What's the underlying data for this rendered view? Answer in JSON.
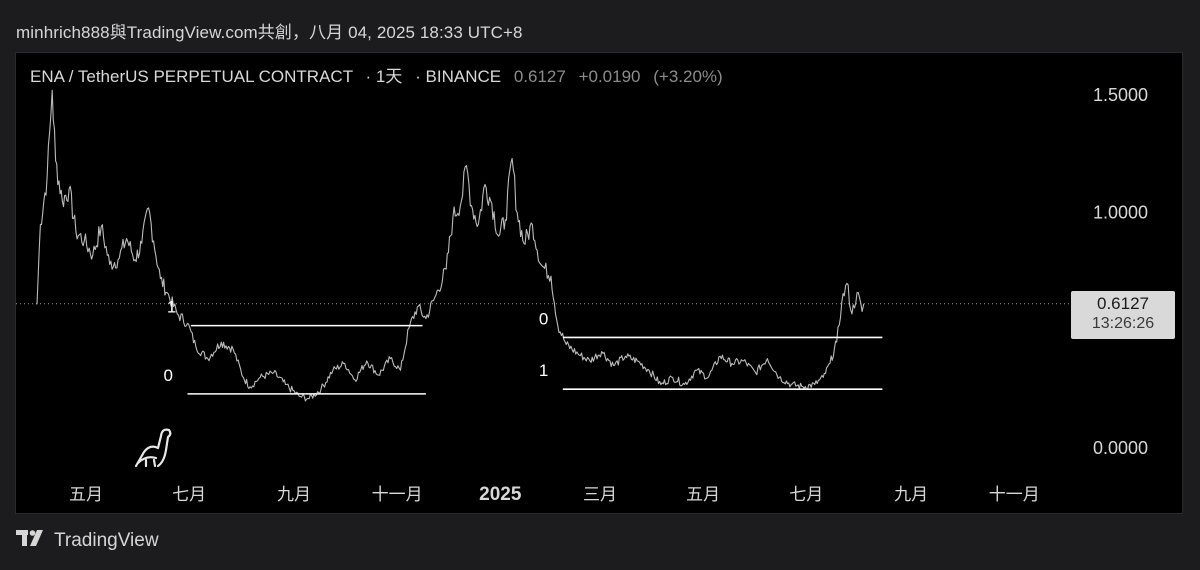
{
  "caption": "minhrich888與TradingView.com共創，八月 04, 2025 18:33 UTC+8",
  "header": {
    "symbol": "ENA / TetherUS PERPETUAL CONTRACT",
    "interval": "1天",
    "exchange": "BINANCE",
    "sep": "·",
    "last": "0.6127",
    "change": "+0.0190",
    "change_pct": "(+3.20%)"
  },
  "price_tag": {
    "price": "0.6127",
    "countdown": "13:26:26"
  },
  "brand": {
    "name": "TradingView",
    "icon": "tradingview-logo-icon"
  },
  "mascot_icon": "dinosaur-icon",
  "colors": {
    "background": "#000000",
    "line": "#cfcfcf",
    "text": "#d8d8d8",
    "muted": "#8c8c8c",
    "levels": "#ffffff"
  },
  "chart_data": {
    "type": "line",
    "title": "",
    "xlabel": "",
    "ylabel": "",
    "ylim": [
      0.0,
      1.5
    ],
    "y_ticks": [
      {
        "value": 1.5,
        "label": "1.5000"
      },
      {
        "value": 1.0,
        "label": "1.0000"
      },
      {
        "value": 0.0,
        "label": "0.0000"
      }
    ],
    "x_ticks": [
      {
        "date": "2024-05-01",
        "label": "五月",
        "bold": false
      },
      {
        "date": "2024-07-01",
        "label": "七月",
        "bold": false
      },
      {
        "date": "2024-09-01",
        "label": "九月",
        "bold": false
      },
      {
        "date": "2024-11-01",
        "label": "十一月",
        "bold": false
      },
      {
        "date": "2025-01-01",
        "label": "2025",
        "bold": true
      },
      {
        "date": "2025-03-01",
        "label": "三月",
        "bold": false
      },
      {
        "date": "2025-05-01",
        "label": "五月",
        "bold": false
      },
      {
        "date": "2025-07-01",
        "label": "七月",
        "bold": false
      },
      {
        "date": "2025-09-01",
        "label": "九月",
        "bold": false
      },
      {
        "date": "2025-11-01",
        "label": "十一月",
        "bold": false
      }
    ],
    "x_range": [
      "2024-03-20",
      "2025-12-01"
    ],
    "grid": false,
    "last_price_line": 0.6127,
    "series": [
      {
        "name": "",
        "points": [
          [
            "2024-04-02",
            0.61
          ],
          [
            "2024-04-04",
            0.95
          ],
          [
            "2024-04-08",
            1.15
          ],
          [
            "2024-04-11",
            1.52
          ],
          [
            "2024-04-13",
            1.22
          ],
          [
            "2024-04-17",
            1.05
          ],
          [
            "2024-04-21",
            1.1
          ],
          [
            "2024-04-25",
            0.92
          ],
          [
            "2024-04-30",
            0.88
          ],
          [
            "2024-05-05",
            0.82
          ],
          [
            "2024-05-10",
            0.94
          ],
          [
            "2024-05-15",
            0.78
          ],
          [
            "2024-05-20",
            0.8
          ],
          [
            "2024-05-25",
            0.89
          ],
          [
            "2024-05-30",
            0.8
          ],
          [
            "2024-06-03",
            0.87
          ],
          [
            "2024-06-07",
            1.02
          ],
          [
            "2024-06-10",
            0.88
          ],
          [
            "2024-06-14",
            0.72
          ],
          [
            "2024-06-18",
            0.66
          ],
          [
            "2024-06-24",
            0.57
          ],
          [
            "2024-06-30",
            0.53
          ],
          [
            "2024-07-05",
            0.43
          ],
          [
            "2024-07-12",
            0.38
          ],
          [
            "2024-07-20",
            0.45
          ],
          [
            "2024-07-27",
            0.42
          ],
          [
            "2024-08-02",
            0.3
          ],
          [
            "2024-08-06",
            0.26
          ],
          [
            "2024-08-12",
            0.3
          ],
          [
            "2024-08-20",
            0.32
          ],
          [
            "2024-08-27",
            0.27
          ],
          [
            "2024-09-04",
            0.22
          ],
          [
            "2024-09-10",
            0.21
          ],
          [
            "2024-09-17",
            0.25
          ],
          [
            "2024-09-24",
            0.33
          ],
          [
            "2024-10-01",
            0.36
          ],
          [
            "2024-10-07",
            0.29
          ],
          [
            "2024-10-14",
            0.37
          ],
          [
            "2024-10-21",
            0.31
          ],
          [
            "2024-10-28",
            0.38
          ],
          [
            "2024-11-03",
            0.33
          ],
          [
            "2024-11-08",
            0.51
          ],
          [
            "2024-11-13",
            0.6
          ],
          [
            "2024-11-18",
            0.55
          ],
          [
            "2024-11-24",
            0.65
          ],
          [
            "2024-11-30",
            0.76
          ],
          [
            "2024-12-04",
            0.98
          ],
          [
            "2024-12-09",
            1.05
          ],
          [
            "2024-12-12",
            1.2
          ],
          [
            "2024-12-15",
            1.03
          ],
          [
            "2024-12-19",
            0.95
          ],
          [
            "2024-12-23",
            1.12
          ],
          [
            "2024-12-27",
            1.04
          ],
          [
            "2024-12-31",
            0.9
          ],
          [
            "2025-01-04",
            0.97
          ],
          [
            "2025-01-08",
            1.23
          ],
          [
            "2025-01-11",
            1.0
          ],
          [
            "2025-01-15",
            0.87
          ],
          [
            "2025-01-20",
            0.95
          ],
          [
            "2025-01-25",
            0.78
          ],
          [
            "2025-01-31",
            0.73
          ],
          [
            "2025-02-04",
            0.52
          ],
          [
            "2025-02-09",
            0.44
          ],
          [
            "2025-02-16",
            0.4
          ],
          [
            "2025-02-23",
            0.37
          ],
          [
            "2025-03-02",
            0.41
          ],
          [
            "2025-03-09",
            0.35
          ],
          [
            "2025-03-16",
            0.39
          ],
          [
            "2025-03-23",
            0.37
          ],
          [
            "2025-03-30",
            0.33
          ],
          [
            "2025-04-06",
            0.27
          ],
          [
            "2025-04-13",
            0.3
          ],
          [
            "2025-04-20",
            0.27
          ],
          [
            "2025-04-27",
            0.33
          ],
          [
            "2025-05-04",
            0.3
          ],
          [
            "2025-05-11",
            0.39
          ],
          [
            "2025-05-18",
            0.36
          ],
          [
            "2025-05-25",
            0.37
          ],
          [
            "2025-06-01",
            0.32
          ],
          [
            "2025-06-08",
            0.38
          ],
          [
            "2025-06-15",
            0.3
          ],
          [
            "2025-06-22",
            0.27
          ],
          [
            "2025-06-29",
            0.26
          ],
          [
            "2025-07-06",
            0.27
          ],
          [
            "2025-07-11",
            0.3
          ],
          [
            "2025-07-15",
            0.36
          ],
          [
            "2025-07-19",
            0.45
          ],
          [
            "2025-07-22",
            0.62
          ],
          [
            "2025-07-25",
            0.7
          ],
          [
            "2025-07-28",
            0.57
          ],
          [
            "2025-07-31",
            0.66
          ],
          [
            "2025-08-03",
            0.58
          ],
          [
            "2025-08-04",
            0.6127
          ]
        ]
      }
    ],
    "annotations": [
      {
        "type": "level",
        "label": "1",
        "value": 0.52,
        "x_from": "2024-07-02",
        "x_to": "2024-11-16",
        "label_side": "above-left"
      },
      {
        "type": "level",
        "label": "0",
        "value": 0.23,
        "x_from": "2024-06-30",
        "x_to": "2024-11-18",
        "label_side": "above-left"
      },
      {
        "type": "level",
        "label": "0",
        "value": 0.47,
        "x_from": "2025-02-07",
        "x_to": "2025-08-15",
        "label_side": "above-left"
      },
      {
        "type": "level",
        "label": "1",
        "value": 0.25,
        "x_from": "2025-02-07",
        "x_to": "2025-08-15",
        "label_side": "above-left"
      }
    ]
  }
}
